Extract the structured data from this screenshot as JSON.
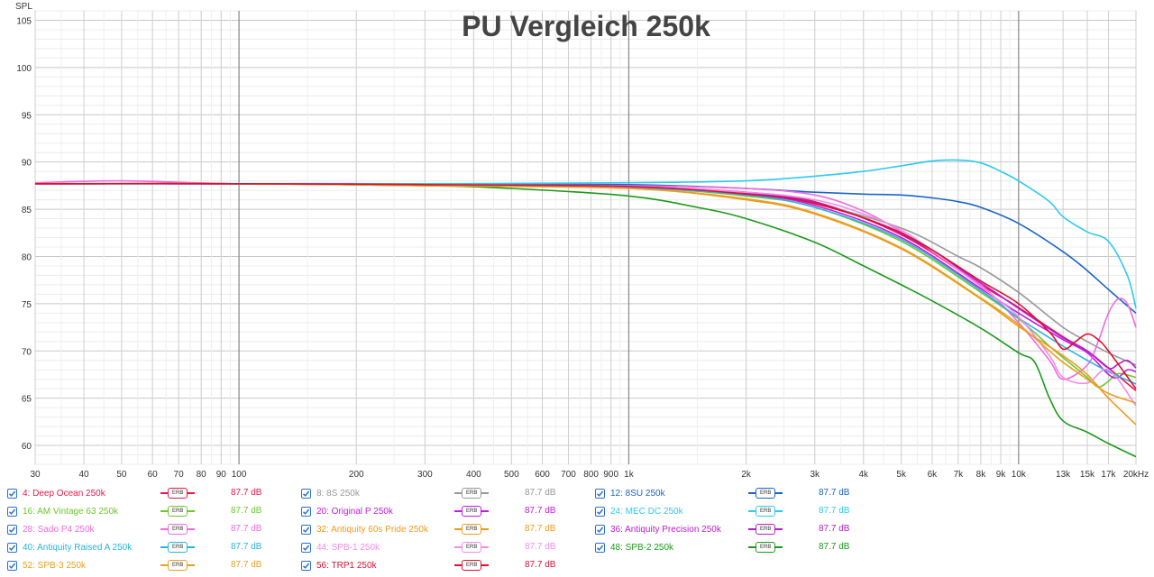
{
  "chart_data": {
    "type": "line",
    "title": "PU Vergleich 250k",
    "ylabel": "SPL",
    "xlabel": "",
    "x_scale": "log",
    "xlim": [
      30,
      20000
    ],
    "ylim": [
      58,
      106
    ],
    "grid": true,
    "x_ticks": [
      {
        "v": 30,
        "label": "30",
        "major": false
      },
      {
        "v": 40,
        "label": "40",
        "major": false
      },
      {
        "v": 50,
        "label": "50",
        "major": false
      },
      {
        "v": 60,
        "label": "60",
        "major": false
      },
      {
        "v": 70,
        "label": "70",
        "major": false
      },
      {
        "v": 80,
        "label": "80",
        "major": false
      },
      {
        "v": 90,
        "label": "90",
        "major": false
      },
      {
        "v": 100,
        "label": "100",
        "major": true
      },
      {
        "v": 200,
        "label": "200",
        "major": false
      },
      {
        "v": 300,
        "label": "300",
        "major": false
      },
      {
        "v": 400,
        "label": "400",
        "major": false
      },
      {
        "v": 500,
        "label": "500",
        "major": false
      },
      {
        "v": 600,
        "label": "600",
        "major": false
      },
      {
        "v": 700,
        "label": "700",
        "major": false
      },
      {
        "v": 800,
        "label": "800",
        "major": false
      },
      {
        "v": 900,
        "label": "900",
        "major": false
      },
      {
        "v": 1000,
        "label": "1k",
        "major": true
      },
      {
        "v": 2000,
        "label": "2k",
        "major": false
      },
      {
        "v": 3000,
        "label": "3k",
        "major": false
      },
      {
        "v": 4000,
        "label": "4k",
        "major": false
      },
      {
        "v": 5000,
        "label": "5k",
        "major": false
      },
      {
        "v": 6000,
        "label": "6k",
        "major": false
      },
      {
        "v": 7000,
        "label": "7k",
        "major": false
      },
      {
        "v": 8000,
        "label": "8k",
        "major": false
      },
      {
        "v": 9000,
        "label": "9k",
        "major": false
      },
      {
        "v": 10000,
        "label": "10k",
        "major": true
      },
      {
        "v": 13000,
        "label": "13k",
        "major": false
      },
      {
        "v": 15000,
        "label": "15k",
        "major": false
      },
      {
        "v": 17000,
        "label": "17k",
        "major": false
      },
      {
        "v": 20000,
        "label": "20kHz",
        "major": false
      }
    ],
    "y_ticks": [
      60,
      65,
      70,
      75,
      80,
      85,
      90,
      95,
      100,
      105
    ],
    "series": [
      {
        "name": "4: Deep Ocean 250k",
        "color": "#e8184a",
        "db": "87.7 dB",
        "x": [
          30,
          100,
          300,
          1000,
          2000,
          3000,
          5000,
          8000,
          10000,
          13000,
          15000,
          17000,
          20000
        ],
        "y": [
          87.7,
          87.7,
          87.6,
          87.4,
          86.8,
          85.8,
          82.3,
          77.0,
          74.6,
          71.5,
          70.0,
          68.2,
          65.8
        ]
      },
      {
        "name": "8: 8S 250k",
        "color": "#999999",
        "db": "87.7 dB",
        "x": [
          30,
          100,
          300,
          1000,
          2000,
          3000,
          5000,
          7000,
          8000,
          10000,
          13000,
          15000,
          17000,
          20000
        ],
        "y": [
          87.7,
          87.7,
          87.6,
          87.4,
          86.6,
          85.6,
          83.0,
          80.0,
          78.8,
          76.2,
          72.5,
          71.0,
          69.8,
          68.5
        ]
      },
      {
        "name": "12: 8SU 250k",
        "color": "#1a64c8",
        "db": "87.7 dB",
        "x": [
          30,
          100,
          300,
          1000,
          2000,
          3000,
          4000,
          5000,
          6000,
          7000,
          8000,
          10000,
          13000,
          15000,
          17000,
          20000
        ],
        "y": [
          87.7,
          87.7,
          87.7,
          87.6,
          87.2,
          86.8,
          86.6,
          86.5,
          86.2,
          85.8,
          85.2,
          83.5,
          80.5,
          78.5,
          76.5,
          74.0
        ]
      },
      {
        "name": "16: AM Vintage 63 250k",
        "color": "#6cc82c",
        "db": "87.7 dB",
        "x": [
          30,
          100,
          300,
          1000,
          2000,
          3000,
          5000,
          8000,
          10000,
          12000,
          13000,
          15000,
          16000,
          17000,
          18000,
          20000
        ],
        "y": [
          87.7,
          87.7,
          87.6,
          87.3,
          86.4,
          85.2,
          81.6,
          76.2,
          73.4,
          70.5,
          69.3,
          67.2,
          66.2,
          66.8,
          67.6,
          67.2
        ]
      },
      {
        "name": "20: Original P 250k",
        "color": "#c21ce0",
        "db": "87.7 dB",
        "x": [
          30,
          100,
          300,
          1000,
          2000,
          3000,
          5000,
          8000,
          10000,
          13000,
          15000,
          17000,
          18000,
          19000,
          20000
        ],
        "y": [
          87.7,
          87.7,
          87.6,
          87.3,
          86.6,
          85.4,
          82.0,
          76.6,
          74.0,
          71.2,
          69.8,
          67.5,
          67.2,
          68.0,
          67.8
        ]
      },
      {
        "name": "24: MEC DC 250k",
        "color": "#2ccaf0",
        "db": "87.7 dB",
        "x": [
          30,
          100,
          300,
          1000,
          2000,
          3000,
          4000,
          5000,
          6000,
          7000,
          8000,
          9000,
          10000,
          12000,
          13000,
          15000,
          17000,
          19000,
          20000
        ],
        "y": [
          87.7,
          87.7,
          87.7,
          87.8,
          88.0,
          88.5,
          89.0,
          89.6,
          90.1,
          90.2,
          89.9,
          89.0,
          88.0,
          85.8,
          84.2,
          82.6,
          81.6,
          78.0,
          74.5
        ]
      },
      {
        "name": "28: Sado P4 250k",
        "color": "#f06ae0",
        "db": "87.7 dB",
        "x": [
          30,
          50,
          100,
          300,
          1000,
          2000,
          3000,
          4000,
          5000,
          6000,
          8000,
          10000,
          12000,
          13000,
          15000,
          16000,
          17000,
          18000,
          19000,
          20000
        ],
        "y": [
          87.8,
          88.0,
          87.7,
          87.6,
          87.5,
          87.2,
          86.5,
          84.8,
          82.6,
          80.5,
          77.0,
          73.0,
          69.0,
          67.0,
          68.5,
          71.0,
          74.0,
          75.5,
          75.0,
          72.5
        ]
      },
      {
        "name": "32: Antiquity 60s Pride 250k",
        "color": "#f09a1c",
        "db": "87.7 dB",
        "x": [
          30,
          100,
          300,
          1000,
          2000,
          3000,
          5000,
          8000,
          10000,
          13000,
          15000,
          17000,
          20000
        ],
        "y": [
          87.7,
          87.7,
          87.5,
          87.2,
          86.0,
          84.5,
          80.8,
          75.5,
          72.6,
          69.5,
          67.5,
          65.0,
          62.2
        ]
      },
      {
        "name": "36: Antiquity Precision 250k",
        "color": "#b81cd0",
        "db": "87.7 dB",
        "x": [
          30,
          100,
          300,
          1000,
          2000,
          3000,
          5000,
          8000,
          10000,
          13000,
          15000,
          17000,
          18000,
          19000,
          20000
        ],
        "y": [
          87.7,
          87.7,
          87.6,
          87.4,
          86.7,
          85.7,
          82.4,
          77.2,
          74.5,
          71.4,
          70.0,
          68.2,
          68.6,
          69.0,
          68.2
        ]
      },
      {
        "name": "40: Antiquity Raised A 250k",
        "color": "#28b4e0",
        "db": "87.7 dB",
        "x": [
          30,
          100,
          300,
          1000,
          2000,
          3000,
          5000,
          8000,
          10000,
          13000,
          15000,
          17000,
          20000
        ],
        "y": [
          87.7,
          87.7,
          87.6,
          87.3,
          86.5,
          85.2,
          81.8,
          76.4,
          73.5,
          70.5,
          69.0,
          67.8,
          66.5
        ]
      },
      {
        "name": "44: SPB-1 250k",
        "color": "#f08cea",
        "db": "87.7 dB",
        "x": [
          30,
          100,
          300,
          1000,
          2000,
          3000,
          4000,
          5000,
          6000,
          8000,
          10000,
          12000,
          13000,
          15000,
          17000,
          20000
        ],
        "y": [
          87.7,
          87.7,
          87.6,
          87.4,
          86.8,
          86.0,
          84.5,
          82.8,
          80.6,
          76.8,
          73.6,
          69.5,
          67.2,
          66.6,
          68.0,
          64.2
        ]
      },
      {
        "name": "48: SPB-2 250k",
        "color": "#1a9a1a",
        "db": "87.7 dB",
        "x": [
          30,
          100,
          300,
          500,
          1000,
          1500,
          2000,
          3000,
          4000,
          5000,
          6000,
          8000,
          10000,
          11000,
          12000,
          13000,
          15000,
          17000,
          20000
        ],
        "y": [
          87.7,
          87.7,
          87.5,
          87.2,
          86.4,
          85.2,
          84.0,
          81.5,
          79.0,
          77.0,
          75.3,
          72.4,
          69.8,
          68.8,
          65.0,
          62.6,
          61.4,
          60.2,
          58.8
        ]
      },
      {
        "name": "52: SPB-3 250k",
        "color": "#e8a020",
        "db": "87.7 dB",
        "x": [
          30,
          100,
          300,
          1000,
          2000,
          3000,
          5000,
          8000,
          10000,
          12000,
          13000,
          15000,
          17000,
          20000
        ],
        "y": [
          87.7,
          87.7,
          87.5,
          87.2,
          86.1,
          84.6,
          80.9,
          75.6,
          72.8,
          70.0,
          68.8,
          67.0,
          65.5,
          64.5
        ]
      },
      {
        "name": "56: TRP1 250k",
        "color": "#dd1030",
        "db": "87.7 dB",
        "x": [
          30,
          100,
          300,
          1000,
          2000,
          3000,
          5000,
          8000,
          10000,
          12000,
          13000,
          14000,
          15000,
          16000,
          17000,
          20000
        ],
        "y": [
          87.7,
          87.7,
          87.6,
          87.4,
          86.6,
          85.6,
          82.5,
          77.4,
          75.0,
          72.0,
          70.2,
          71.0,
          71.8,
          71.2,
          70.0,
          66.0
        ]
      }
    ]
  },
  "legend": {
    "erb_label": "ERB",
    "items": [
      {
        "name": "4: Deep Ocean 250k",
        "color": "#e8184a",
        "db": "87.7 dB"
      },
      {
        "name": "8: 8S 250k",
        "color": "#999999",
        "db": "87.7 dB"
      },
      {
        "name": "12: 8SU 250k",
        "color": "#1a64c8",
        "db": "87.7 dB"
      },
      {
        "name": "16: AM Vintage 63 250k",
        "color": "#6cc82c",
        "db": "87.7 dB"
      },
      {
        "name": "20: Original P 250k",
        "color": "#c21ce0",
        "db": "87.7 dB"
      },
      {
        "name": "24: MEC DC 250k",
        "color": "#2ccaf0",
        "db": "87.7 dB"
      },
      {
        "name": "28: Sado P4 250k",
        "color": "#f06ae0",
        "db": "87.7 dB"
      },
      {
        "name": "32: Antiquity 60s Pride 250k",
        "color": "#f09a1c",
        "db": "87.7 dB"
      },
      {
        "name": "36: Antiquity Precision 250k",
        "color": "#b81cd0",
        "db": "87.7 dB"
      },
      {
        "name": "40: Antiquity Raised A 250k",
        "color": "#28b4e0",
        "db": "87.7 dB"
      },
      {
        "name": "44: SPB-1 250k",
        "color": "#f08cea",
        "db": "87.7 dB"
      },
      {
        "name": "48: SPB-2 250k",
        "color": "#1a9a1a",
        "db": "87.7 dB"
      },
      {
        "name": "52: SPB-3 250k",
        "color": "#e8a020",
        "db": "87.7 dB"
      },
      {
        "name": "56: TRP1 250k",
        "color": "#dd1030",
        "db": "87.7 dB"
      }
    ]
  }
}
